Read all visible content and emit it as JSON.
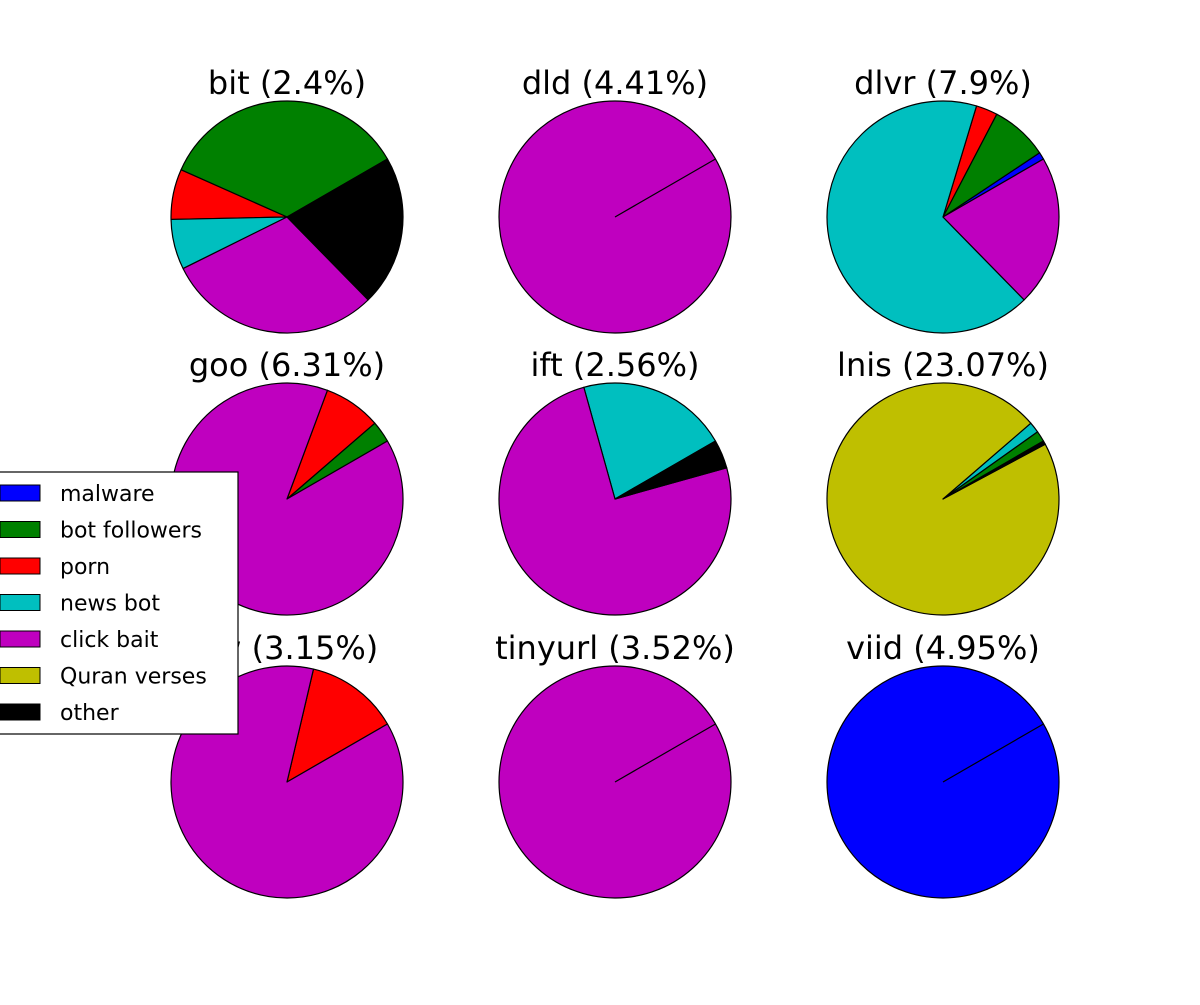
{
  "legend": [
    {
      "name": "malware",
      "color": "#0000ff"
    },
    {
      "name": "bot followers",
      "color": "#008000"
    },
    {
      "name": "porn",
      "color": "#ff0000"
    },
    {
      "name": "news bot",
      "color": "#00bfbf"
    },
    {
      "name": "click bait",
      "color": "#bf00bf"
    },
    {
      "name": "Quran verses",
      "color": "#bfbf00"
    },
    {
      "name": "other",
      "color": "#000000"
    }
  ],
  "chart_data": [
    {
      "type": "pie",
      "title": "bit (2.4%)",
      "slices": [
        {
          "category": "malware",
          "value": 0
        },
        {
          "category": "bot followers",
          "value": 35
        },
        {
          "category": "porn",
          "value": 7
        },
        {
          "category": "news bot",
          "value": 7
        },
        {
          "category": "click bait",
          "value": 30
        },
        {
          "category": "Quran verses",
          "value": 0
        },
        {
          "category": "other",
          "value": 21
        }
      ]
    },
    {
      "type": "pie",
      "title": "dld (4.41%)",
      "slices": [
        {
          "category": "malware",
          "value": 0
        },
        {
          "category": "bot followers",
          "value": 0
        },
        {
          "category": "porn",
          "value": 0
        },
        {
          "category": "news bot",
          "value": 0
        },
        {
          "category": "click bait",
          "value": 100
        },
        {
          "category": "Quran verses",
          "value": 0
        },
        {
          "category": "other",
          "value": 0
        }
      ]
    },
    {
      "type": "pie",
      "title": "dlvr (7.9%)",
      "slices": [
        {
          "category": "malware",
          "value": 1
        },
        {
          "category": "bot followers",
          "value": 8
        },
        {
          "category": "porn",
          "value": 3
        },
        {
          "category": "news bot",
          "value": 67
        },
        {
          "category": "click bait",
          "value": 21
        },
        {
          "category": "Quran verses",
          "value": 0
        },
        {
          "category": "other",
          "value": 0
        }
      ]
    },
    {
      "type": "pie",
      "title": "goo (6.31%)",
      "slices": [
        {
          "category": "malware",
          "value": 0
        },
        {
          "category": "bot followers",
          "value": 3
        },
        {
          "category": "porn",
          "value": 8
        },
        {
          "category": "news bot",
          "value": 0
        },
        {
          "category": "click bait",
          "value": 89
        },
        {
          "category": "Quran verses",
          "value": 0
        },
        {
          "category": "other",
          "value": 0
        }
      ]
    },
    {
      "type": "pie",
      "title": "ift (2.56%)",
      "slices": [
        {
          "category": "malware",
          "value": 0
        },
        {
          "category": "bot followers",
          "value": 0
        },
        {
          "category": "porn",
          "value": 0
        },
        {
          "category": "news bot",
          "value": 21
        },
        {
          "category": "click bait",
          "value": 75
        },
        {
          "category": "Quran verses",
          "value": 0
        },
        {
          "category": "other",
          "value": 4
        }
      ]
    },
    {
      "type": "pie",
      "title": "lnis (23.07%)",
      "slices": [
        {
          "category": "malware",
          "value": 0
        },
        {
          "category": "bot followers",
          "value": 1.5
        },
        {
          "category": "porn",
          "value": 0
        },
        {
          "category": "news bot",
          "value": 1.5
        },
        {
          "category": "click bait",
          "value": 0
        },
        {
          "category": "Quran verses",
          "value": 96.5
        },
        {
          "category": "other",
          "value": 0.5
        }
      ]
    },
    {
      "type": "pie",
      "title": "ow (3.15%)",
      "slices": [
        {
          "category": "malware",
          "value": 0
        },
        {
          "category": "bot followers",
          "value": 0
        },
        {
          "category": "porn",
          "value": 13
        },
        {
          "category": "news bot",
          "value": 0
        },
        {
          "category": "click bait",
          "value": 87
        },
        {
          "category": "Quran verses",
          "value": 0
        },
        {
          "category": "other",
          "value": 0
        }
      ]
    },
    {
      "type": "pie",
      "title": "tinyurl (3.52%)",
      "slices": [
        {
          "category": "malware",
          "value": 0
        },
        {
          "category": "bot followers",
          "value": 0
        },
        {
          "category": "porn",
          "value": 0
        },
        {
          "category": "news bot",
          "value": 0
        },
        {
          "category": "click bait",
          "value": 100
        },
        {
          "category": "Quran verses",
          "value": 0
        },
        {
          "category": "other",
          "value": 0
        }
      ]
    },
    {
      "type": "pie",
      "title": "viid (4.95%)",
      "slices": [
        {
          "category": "malware",
          "value": 100
        },
        {
          "category": "bot followers",
          "value": 0
        },
        {
          "category": "porn",
          "value": 0
        },
        {
          "category": "news bot",
          "value": 0
        },
        {
          "category": "click bait",
          "value": 0
        },
        {
          "category": "Quran verses",
          "value": 0
        },
        {
          "category": "other",
          "value": 0
        }
      ]
    }
  ]
}
